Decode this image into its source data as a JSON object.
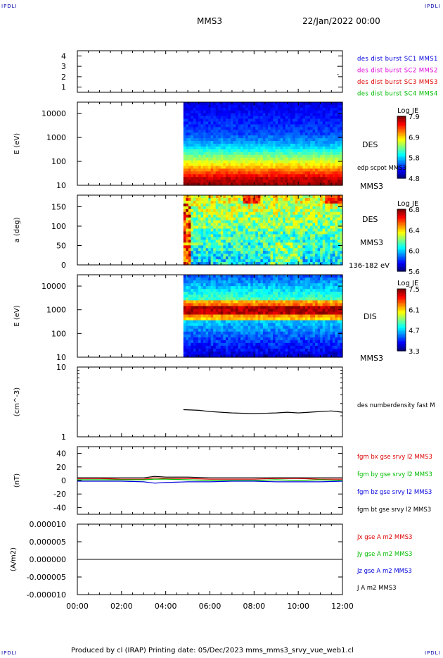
{
  "header": {
    "corner_label": "IPDLI",
    "spacecraft": "MMS3",
    "datetime": "22/Jan/2022 00:00"
  },
  "footer": {
    "text": "Produced by cl (IRAP)   Printing date: 05/Dec/2023   mms_mms3_srvy_vue_web1.cl"
  },
  "colors": {
    "blue": "#0000dd",
    "magenta": "#dd00dd",
    "red": "#dd0000",
    "green": "#00bb00",
    "black": "#000000"
  },
  "chart_data": [
    {
      "type": "scatter",
      "panel": "burst",
      "ylim": [
        0.5,
        4.5
      ],
      "yticks": [
        "1",
        "2",
        "3",
        "4"
      ],
      "legend": [
        {
          "name": "des dist burst SC1 MMS1",
          "color": "#0000dd"
        },
        {
          "name": "des dist burst SC2 MMS2",
          "color": "#dd00dd"
        },
        {
          "name": "des dist burst SC3 MMS3",
          "color": "#dd0000"
        },
        {
          "name": "des dist burst SC4 MMS4",
          "color": "#00bb00"
        }
      ],
      "points": [
        {
          "x": 11.8,
          "y": 3.0
        },
        {
          "x": 11.8,
          "y": 2.2
        }
      ]
    },
    {
      "type": "heatmap",
      "panel": "des-energy",
      "ylabel": "E (eV)",
      "yscale": "log",
      "ylim": [
        10,
        30000
      ],
      "yticks": [
        "10000",
        "1000",
        "100",
        "10"
      ],
      "data_start_hour": 4.8,
      "side_labels": [
        "DES",
        "edp scpot MMS3",
        "MMS3"
      ],
      "colorbar": {
        "title": "Log JE",
        "ticks": [
          "7.9",
          "6.9",
          "5.8",
          "4.8"
        ]
      }
    },
    {
      "type": "heatmap",
      "panel": "des-pitch",
      "ylabel": "a (deg)",
      "ylim": [
        0,
        180
      ],
      "yticks": [
        "150",
        "100",
        "50",
        "0"
      ],
      "data_start_hour": 4.8,
      "side_labels": [
        "DES",
        "MMS3",
        "136-182 eV"
      ],
      "colorbar": {
        "title": "Log JE",
        "ticks": [
          "6.8",
          "6.4",
          "6.0",
          "5.6"
        ]
      }
    },
    {
      "type": "heatmap",
      "panel": "dis-energy",
      "ylabel": "E (eV)",
      "yscale": "log",
      "ylim": [
        10,
        30000
      ],
      "yticks": [
        "10000",
        "1000",
        "100",
        "10"
      ],
      "data_start_hour": 4.8,
      "side_labels": [
        "DIS",
        "MMS3"
      ],
      "colorbar": {
        "title": "Log JE",
        "ticks": [
          "7.5",
          "6.1",
          "4.7",
          "3.3"
        ]
      }
    },
    {
      "type": "line",
      "panel": "density",
      "ylabel": "(cm^-3)",
      "yscale": "log",
      "ylim": [
        1,
        10
      ],
      "yticks": [
        "10",
        "1"
      ],
      "legend": [
        {
          "name": "des numberdensity fast M",
          "color": "#000000"
        }
      ],
      "x": [
        4.8,
        5.5,
        6.0,
        7.0,
        8.0,
        9.0,
        9.5,
        10.0,
        10.5,
        11.0,
        11.5,
        12.0
      ],
      "values": [
        2.45,
        2.4,
        2.3,
        2.2,
        2.15,
        2.2,
        2.25,
        2.2,
        2.25,
        2.3,
        2.35,
        2.25
      ]
    },
    {
      "type": "line",
      "panel": "fgm",
      "ylabel": "(nT)",
      "ylim": [
        -50,
        50
      ],
      "yticks": [
        "40",
        "20",
        "0",
        "-20",
        "-40"
      ],
      "x": [
        0,
        1,
        2,
        3,
        3.5,
        4,
        5,
        6,
        7,
        8,
        9,
        10,
        11,
        12
      ],
      "series": [
        {
          "name": "fgm bx gse srvy l2 MMS3",
          "color": "#dd0000",
          "values": [
            3,
            3,
            2,
            2,
            4,
            3,
            3,
            2,
            2,
            2,
            3,
            3,
            2,
            2
          ]
        },
        {
          "name": "fgm by gse srvy l2 MMS3",
          "color": "#00bb00",
          "values": [
            1,
            1,
            1,
            1,
            2,
            2,
            1,
            0,
            0,
            0,
            1,
            0,
            1,
            0
          ]
        },
        {
          "name": "fgm bz gse srvy l2 MMS3",
          "color": "#0000dd",
          "values": [
            -1,
            -1,
            -1,
            -2,
            -4,
            -3,
            -2,
            -2,
            -1,
            -1,
            -2,
            -2,
            -2,
            -1
          ]
        },
        {
          "name": "fgm bt gse srvy l2 MMS3",
          "color": "#000000",
          "values": [
            4,
            4,
            4,
            4,
            6,
            5,
            5,
            4,
            4,
            4,
            4,
            4,
            4,
            4
          ]
        }
      ]
    },
    {
      "type": "line",
      "panel": "current",
      "ylabel": "(A/m2)",
      "ylim": [
        -1e-05,
        1e-05
      ],
      "yticks": [
        "0.000010",
        "0.000005",
        "0.000000",
        "-0.000005",
        "-0.000010"
      ],
      "x": [
        0,
        12
      ],
      "series": [
        {
          "name": "Jx gse A m2 MMS3",
          "color": "#dd0000",
          "values": [
            0,
            0
          ]
        },
        {
          "name": "Jy gse A m2 MMS3",
          "color": "#00bb00",
          "values": [
            0,
            0
          ]
        },
        {
          "name": "Jz gse A m2 MMS3",
          "color": "#0000dd",
          "values": [
            0,
            0
          ]
        },
        {
          "name": "J A m2 MMS3",
          "color": "#000000",
          "values": [
            0,
            0
          ]
        }
      ]
    }
  ],
  "xaxis": {
    "xlim": [
      0,
      12
    ],
    "ticks": [
      "00:00",
      "02:00",
      "04:00",
      "06:00",
      "08:00",
      "10:00",
      "12:00"
    ]
  }
}
